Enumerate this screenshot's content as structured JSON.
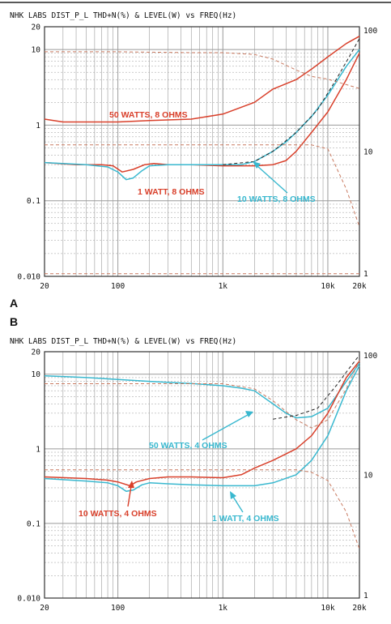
{
  "colors": {
    "red": "#d9402b",
    "cyan": "#39b8cf",
    "grid": "#9a9a9a",
    "ink": "#222222",
    "dashed": "#c97a60"
  },
  "chart_data": [
    {
      "type": "line",
      "panel_letter": "A",
      "title": "NHK LABS   DIST_P_L  THD+N(%) & LEVEL(W) vs FREQ(Hz)",
      "xscale": "log",
      "xlim": [
        20,
        20000
      ],
      "x_ticks": [
        {
          "v": 20,
          "label": "20"
        },
        {
          "v": 100,
          "label": "100"
        },
        {
          "v": 1000,
          "label": "1k"
        },
        {
          "v": 10000,
          "label": "10k"
        },
        {
          "v": 20000,
          "label": "20k"
        }
      ],
      "yscale": "log",
      "ylim": [
        0.01,
        20
      ],
      "y_ticks": [
        {
          "v": 20,
          "label": "20"
        },
        {
          "v": 10,
          "label": "10"
        },
        {
          "v": 1,
          "label": "1"
        },
        {
          "v": 0.1,
          "label": "0.1"
        },
        {
          "v": 0.01,
          "label": "0.010"
        }
      ],
      "y2scale": "log",
      "y2lim": [
        1,
        100
      ],
      "y2_ticks": [
        {
          "v": 100,
          "label": "100"
        },
        {
          "v": 10,
          "label": "10"
        },
        {
          "v": 1,
          "label": "1"
        }
      ],
      "grid": true,
      "series": [
        {
          "key": "50w8",
          "name": "50 WATTS, 8 OHMS",
          "color_ref": "red",
          "axis": "left",
          "dash": false,
          "x": [
            20,
            30,
            50,
            100,
            200,
            500,
            1000,
            2000,
            3000,
            5000,
            7000,
            10000,
            15000,
            20000
          ],
          "y": [
            1.2,
            1.1,
            1.1,
            1.1,
            1.15,
            1.2,
            1.4,
            2.0,
            3.0,
            4.0,
            5.5,
            8.0,
            12.0,
            15.0
          ]
        },
        {
          "key": "1w8",
          "name": "1 WATT, 8 OHMS",
          "color_ref": "red",
          "axis": "left",
          "dash": false,
          "x": [
            20,
            40,
            70,
            90,
            110,
            140,
            180,
            220,
            300,
            500,
            1000,
            2000,
            3000,
            4000,
            5000,
            7000,
            10000,
            15000,
            20000
          ],
          "y": [
            0.32,
            0.3,
            0.3,
            0.29,
            0.24,
            0.26,
            0.3,
            0.31,
            0.3,
            0.3,
            0.29,
            0.29,
            0.3,
            0.34,
            0.45,
            0.8,
            1.5,
            4.0,
            9.0
          ]
        },
        {
          "key": "10w8",
          "name": "10 WATTS, 8 OHMS",
          "color_ref": "cyan",
          "axis": "left",
          "dash": false,
          "x": [
            20,
            50,
            80,
            100,
            120,
            140,
            170,
            200,
            300,
            500,
            1000,
            1500,
            2000,
            3000,
            4000,
            5000,
            7000,
            10000,
            15000,
            20000
          ],
          "y": [
            0.32,
            0.3,
            0.28,
            0.24,
            0.19,
            0.2,
            0.25,
            0.29,
            0.3,
            0.3,
            0.3,
            0.3,
            0.33,
            0.45,
            0.6,
            0.8,
            1.3,
            2.5,
            6.0,
            10.0
          ]
        },
        {
          "key": "lvl50",
          "name": "",
          "color_ref": "dashed",
          "axis": "right",
          "dash": true,
          "x": [
            20,
            50,
            100,
            500,
            1000,
            2000,
            3000,
            5000,
            7000,
            10000,
            20000
          ],
          "y": [
            63,
            63,
            63,
            62,
            62,
            60,
            55,
            45,
            40,
            38,
            32
          ]
        },
        {
          "key": "lvl10",
          "name": "",
          "color_ref": "dashed",
          "axis": "right",
          "dash": true,
          "x": [
            20,
            100,
            1000,
            3000,
            7000,
            10000,
            15000,
            20000
          ],
          "y": [
            11.3,
            11.3,
            11.3,
            11.3,
            11.3,
            10.5,
            5.0,
            2.5
          ]
        },
        {
          "key": "lvl1",
          "name": "",
          "color_ref": "dashed",
          "axis": "right",
          "dash": true,
          "x": [
            20,
            100,
            1000,
            5000,
            10000,
            20000
          ],
          "y": [
            1.05,
            1.05,
            1.05,
            1.05,
            1.05,
            1.05
          ]
        },
        {
          "key": "sweep",
          "name": "",
          "color_ref": "ink",
          "axis": "left",
          "dash": true,
          "x": [
            1000,
            2000,
            3000,
            5000,
            8000,
            12000,
            16000,
            20000
          ],
          "y": [
            0.3,
            0.33,
            0.45,
            0.8,
            1.6,
            4.0,
            8.0,
            14.0
          ]
        }
      ],
      "annotations": [
        {
          "text": "50 WATTS, 8 OHMS",
          "color_ref": "red"
        },
        {
          "text": "1 WATT, 8 OHMS",
          "color_ref": "red"
        },
        {
          "text": "10 WATTS, 8 OHMS",
          "color_ref": "cyan"
        }
      ]
    },
    {
      "type": "line",
      "panel_letter": "B",
      "title": "NHK LABS   DIST_P_L  THD+N(%) & LEVEL(W) vs FREQ(Hz)",
      "xscale": "log",
      "xlim": [
        20,
        20000
      ],
      "x_ticks": [
        {
          "v": 20,
          "label": "20"
        },
        {
          "v": 100,
          "label": "100"
        },
        {
          "v": 1000,
          "label": "1k"
        },
        {
          "v": 10000,
          "label": "10k"
        },
        {
          "v": 20000,
          "label": "20k"
        }
      ],
      "yscale": "log",
      "ylim": [
        0.01,
        20
      ],
      "y_ticks": [
        {
          "v": 20,
          "label": "20"
        },
        {
          "v": 10,
          "label": "10"
        },
        {
          "v": 1,
          "label": "1"
        },
        {
          "v": 0.1,
          "label": "0.1"
        },
        {
          "v": 0.01,
          "label": "0.010"
        }
      ],
      "y2scale": "log",
      "y2lim": [
        1,
        100
      ],
      "y2_ticks": [
        {
          "v": 100,
          "label": "100"
        },
        {
          "v": 10,
          "label": "10"
        },
        {
          "v": 1,
          "label": "1"
        }
      ],
      "grid": true,
      "series": [
        {
          "key": "50w4",
          "name": "50 WATTS, 4 OHMS",
          "color_ref": "cyan",
          "axis": "left",
          "dash": false,
          "x": [
            20,
            30,
            50,
            100,
            200,
            500,
            1000,
            1500,
            2000,
            3000,
            4000,
            5000,
            7000,
            10000,
            15000,
            20000
          ],
          "y": [
            9.5,
            9.3,
            9.0,
            8.5,
            8.0,
            7.5,
            7.0,
            6.5,
            6.0,
            4.0,
            3.0,
            2.6,
            2.7,
            3.5,
            8.0,
            14.0
          ]
        },
        {
          "key": "10w4",
          "name": "10 WATTS, 4 OHMS",
          "color_ref": "red",
          "axis": "left",
          "dash": false,
          "x": [
            20,
            50,
            80,
            100,
            130,
            150,
            200,
            300,
            500,
            1000,
            1500,
            2000,
            3000,
            5000,
            7000,
            10000,
            15000,
            20000
          ],
          "y": [
            0.42,
            0.4,
            0.38,
            0.36,
            0.32,
            0.36,
            0.4,
            0.42,
            0.42,
            0.41,
            0.45,
            0.55,
            0.7,
            1.0,
            1.5,
            3.0,
            9.0,
            15.0
          ]
        },
        {
          "key": "1w4",
          "name": "1 WATT, 4 OHMS",
          "color_ref": "cyan",
          "axis": "left",
          "dash": false,
          "x": [
            20,
            50,
            80,
            100,
            120,
            140,
            170,
            200,
            300,
            500,
            1000,
            2000,
            3000,
            5000,
            7000,
            10000,
            15000,
            20000
          ],
          "y": [
            0.4,
            0.37,
            0.35,
            0.32,
            0.27,
            0.28,
            0.33,
            0.35,
            0.34,
            0.33,
            0.32,
            0.32,
            0.35,
            0.45,
            0.7,
            1.5,
            6.0,
            13.0
          ]
        },
        {
          "key": "lvl50b",
          "name": "",
          "color_ref": "dashed",
          "axis": "right",
          "dash": true,
          "x": [
            20,
            100,
            1000,
            2000,
            3000,
            5000,
            7000,
            10000,
            15000,
            20000
          ],
          "y": [
            55,
            55,
            55,
            50,
            40,
            28,
            24,
            28,
            50,
            85
          ]
        },
        {
          "key": "lvl10b",
          "name": "",
          "color_ref": "dashed",
          "axis": "right",
          "dash": true,
          "x": [
            20,
            100,
            1000,
            5000,
            7000,
            10000,
            15000,
            20000
          ],
          "y": [
            11.0,
            11.0,
            11.0,
            11.0,
            10.5,
            9.0,
            5.0,
            2.5
          ]
        },
        {
          "key": "sweepb",
          "name": "",
          "color_ref": "ink",
          "axis": "left",
          "dash": true,
          "x": [
            3000,
            5000,
            8000,
            12000,
            16000,
            20000
          ],
          "y": [
            2.5,
            2.8,
            3.5,
            7.0,
            12.0,
            18.0
          ]
        }
      ],
      "annotations": [
        {
          "text": "50 WATTS, 4 OHMS",
          "color_ref": "cyan"
        },
        {
          "text": "10 WATTS, 4 OHMS",
          "color_ref": "red"
        },
        {
          "text": "1 WATT, 4 OHMS",
          "color_ref": "cyan"
        }
      ]
    }
  ]
}
